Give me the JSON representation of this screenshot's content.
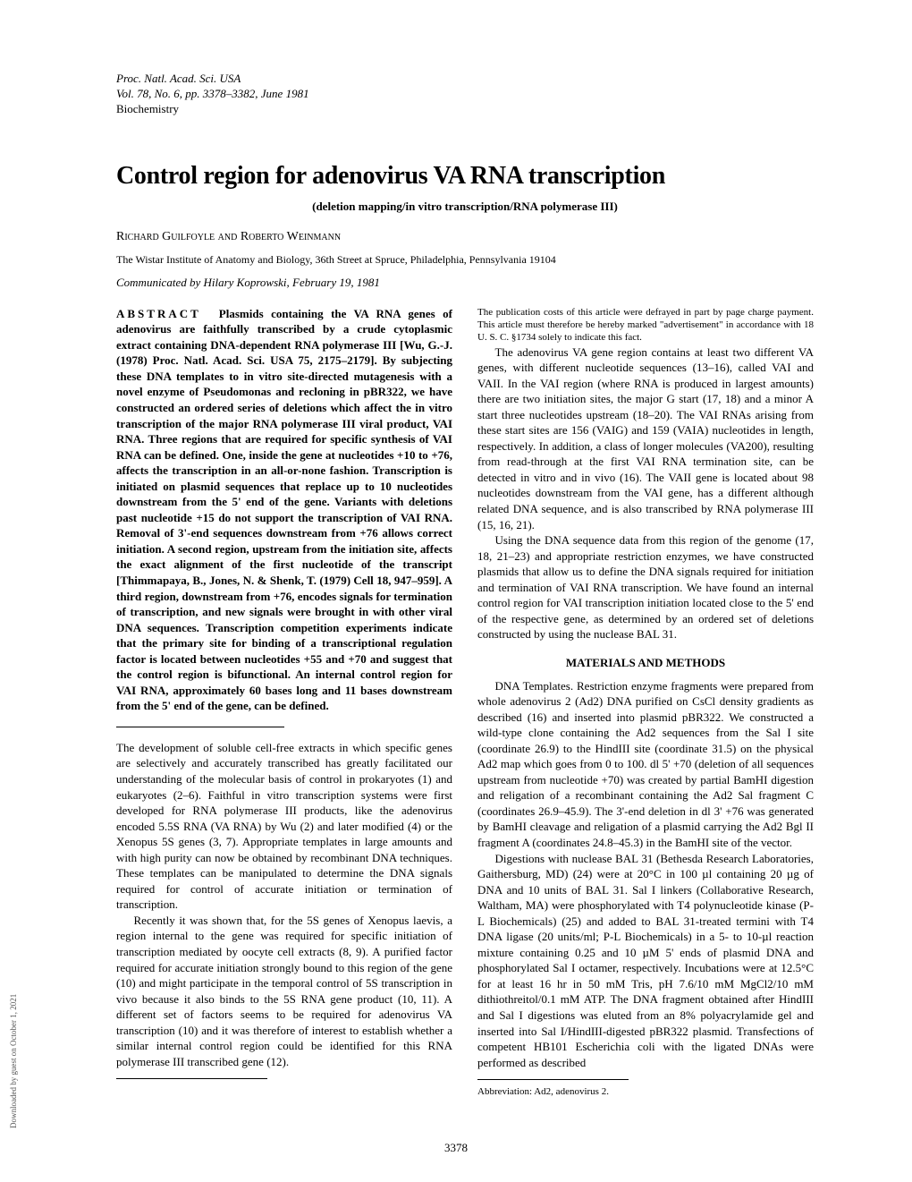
{
  "header": {
    "line1": "Proc. Natl. Acad. Sci. USA",
    "line2": "Vol. 78, No. 6, pp. 3378–3382, June 1981",
    "line3": "Biochemistry"
  },
  "title": "Control region for adenovirus VA RNA transcription",
  "subtitle": "(deletion mapping/in vitro transcription/RNA polymerase III)",
  "authors": "Richard Guilfoyle and Roberto Weinmann",
  "affiliation": "The Wistar Institute of Anatomy and Biology, 36th Street at Spruce, Philadelphia, Pennsylvania 19104",
  "communicated": "Communicated by Hilary Koprowski, February 19, 1981",
  "abstract_label": "ABSTRACT",
  "abstract_text": "Plasmids containing the VA RNA genes of adenovirus are faithfully transcribed by a crude cytoplasmic extract containing DNA-dependent RNA polymerase III [Wu, G.-J. (1978) Proc. Natl. Acad. Sci. USA 75, 2175–2179]. By subjecting these DNA templates to in vitro site-directed mutagenesis with a novel enzyme of Pseudomonas and recloning in pBR322, we have constructed an ordered series of deletions which affect the in vitro transcription of the major RNA polymerase III viral product, VAI RNA. Three regions that are required for specific synthesis of VAI RNA can be defined. One, inside the gene at nucleotides +10 to +76, affects the transcription in an all-or-none fashion. Transcription is initiated on plasmid sequences that replace up to 10 nucleotides downstream from the 5' end of the gene. Variants with deletions past nucleotide +15 do not support the transcription of VAI RNA. Removal of 3'-end sequences downstream from +76 allows correct initiation. A second region, upstream from the initiation site, affects the exact alignment of the first nucleotide of the transcript [Thimmapaya, B., Jones, N. & Shenk, T. (1979) Cell 18, 947–959]. A third region, downstream from +76, encodes signals for termination of transcription, and new signals were brought in with other viral DNA sequences. Transcription competition experiments indicate that the primary site for binding of a transcriptional regulation factor is located between nucleotides +55 and +70 and suggest that the control region is bifunctional. An internal control region for VAI RNA, approximately 60 bases long and 11 bases downstream from the 5' end of the gene, can be defined.",
  "body": {
    "p1": "The development of soluble cell-free extracts in which specific genes are selectively and accurately transcribed has greatly facilitated our understanding of the molecular basis of control in prokaryotes (1) and eukaryotes (2–6). Faithful in vitro transcription systems were first developed for RNA polymerase III products, like the adenovirus encoded 5.5S RNA (VA RNA) by Wu (2) and later modified (4) or the Xenopus 5S genes (3, 7). Appropriate templates in large amounts and with high purity can now be obtained by recombinant DNA techniques. These templates can be manipulated to determine the DNA signals required for control of accurate initiation or termination of transcription.",
    "p2": "Recently it was shown that, for the 5S genes of Xenopus laevis, a region internal to the gene was required for specific initiation of transcription mediated by oocyte cell extracts (8, 9). A purified factor required for accurate initiation strongly bound to this region of the gene (10) and might participate in the temporal control of 5S transcription in vivo because it also binds to the 5S RNA gene product (10, 11). A different set of factors seems to be required for adenovirus VA transcription (10) and it was therefore of interest to establish whether a similar internal control region could be identified for this RNA polymerase III transcribed gene (12).",
    "p3": "The adenovirus VA gene region contains at least two different VA genes, with different nucleotide sequences (13–16), called VAI and VAII. In the VAI region (where RNA is produced in largest amounts) there are two initiation sites, the major G start (17, 18) and a minor A start three nucleotides upstream (18–20). The VAI RNAs arising from these start sites are 156 (VAIG) and 159 (VAIA) nucleotides in length, respectively. In addition, a class of longer molecules (VA200), resulting from read-through at the first VAI RNA termination site, can be detected in vitro and in vivo (16). The VAII gene is located about 98 nucleotides downstream from the VAI gene, has a different although related DNA sequence, and is also transcribed by RNA polymerase III (15, 16, 21).",
    "p4": "Using the DNA sequence data from this region of the genome (17, 18, 21–23) and appropriate restriction enzymes, we have constructed plasmids that allow us to define the DNA signals required for initiation and termination of VAI RNA transcription. We have found an internal control region for VAI transcription initiation located close to the 5' end of the respective gene, as determined by an ordered set of deletions constructed by using the nuclease BAL 31.",
    "mm_heading": "MATERIALS AND METHODS",
    "p5": "DNA Templates. Restriction enzyme fragments were prepared from whole adenovirus 2 (Ad2) DNA purified on CsCl density gradients as described (16) and inserted into plasmid pBR322. We constructed a wild-type clone containing the Ad2 sequences from the Sal I site (coordinate 26.9) to the HindIII site (coordinate 31.5) on the physical Ad2 map which goes from 0 to 100. dl 5' +70 (deletion of all sequences upstream from nucleotide +70) was created by partial BamHI digestion and religation of a recombinant containing the Ad2 Sal fragment C (coordinates 26.9–45.9). The 3'-end deletion in dl 3' +76 was generated by BamHI cleavage and religation of a plasmid carrying the Ad2 Bgl II fragment A (coordinates 24.8–45.3) in the BamHI site of the vector.",
    "p6": "Digestions with nuclease BAL 31 (Bethesda Research Laboratories, Gaithersburg, MD) (24) were at 20°C in 100 µl containing 20 µg of DNA and 10 units of BAL 31. Sal I linkers (Collaborative Research, Waltham, MA) were phosphorylated with T4 polynucleotide kinase (P-L Biochemicals) (25) and added to BAL 31-treated termini with T4 DNA ligase (20 units/ml; P-L Biochemicals) in a 5- to 10-µl reaction mixture containing 0.25 and 10 µM 5' ends of plasmid DNA and phosphorylated Sal I octamer, respectively. Incubations were at 12.5°C for at least 16 hr in 50 mM Tris, pH 7.6/10 mM MgCl2/10 mM dithiothreitol/0.1 mM ATP. The DNA fragment obtained after HindIII and Sal I digestions was eluted from an 8% polyacrylamide gel and inserted into Sal I/HindIII-digested pBR322 plasmid. Transfections of competent HB101 Escherichia coli with the ligated DNAs were performed as described"
  },
  "footnote_left": "The publication costs of this article were defrayed in part by page charge payment. This article must therefore be hereby marked \"advertisement\" in accordance with 18 U. S. C. §1734 solely to indicate this fact.",
  "footnote_right": "Abbreviation: Ad2, adenovirus 2.",
  "pagenum": "3378",
  "sidetext": "Downloaded by guest on October 1, 2021"
}
